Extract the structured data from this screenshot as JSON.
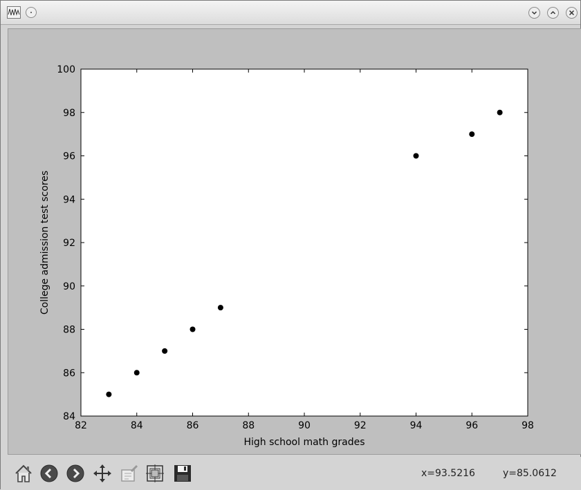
{
  "window": {
    "title": ""
  },
  "titlebar": {
    "buttons": [
      "minimize-icon",
      "maximize-icon",
      "close-icon"
    ]
  },
  "toolbar": {
    "tools": [
      "home-icon",
      "back-icon",
      "forward-icon",
      "pan-icon",
      "zoom-icon",
      "configure-subplots-icon",
      "save-icon"
    ],
    "coords": {
      "x": "x=93.5216",
      "y": "y=85.0612"
    }
  },
  "chart_data": {
    "type": "scatter",
    "xlabel": "High school math grades",
    "ylabel": "College admission test scores",
    "xlim": [
      82,
      98
    ],
    "ylim": [
      84,
      100
    ],
    "xticks": [
      "82",
      "84",
      "86",
      "88",
      "90",
      "92",
      "94",
      "96",
      "98"
    ],
    "yticks": [
      "84",
      "86",
      "88",
      "90",
      "92",
      "94",
      "96",
      "98",
      "100"
    ],
    "grid": false,
    "marker_color": "#000000",
    "series": [
      {
        "x": [
          83,
          84,
          85,
          86,
          87,
          94,
          96,
          97
        ],
        "y": [
          85,
          86,
          87,
          88,
          89,
          96,
          97,
          98
        ]
      }
    ]
  }
}
